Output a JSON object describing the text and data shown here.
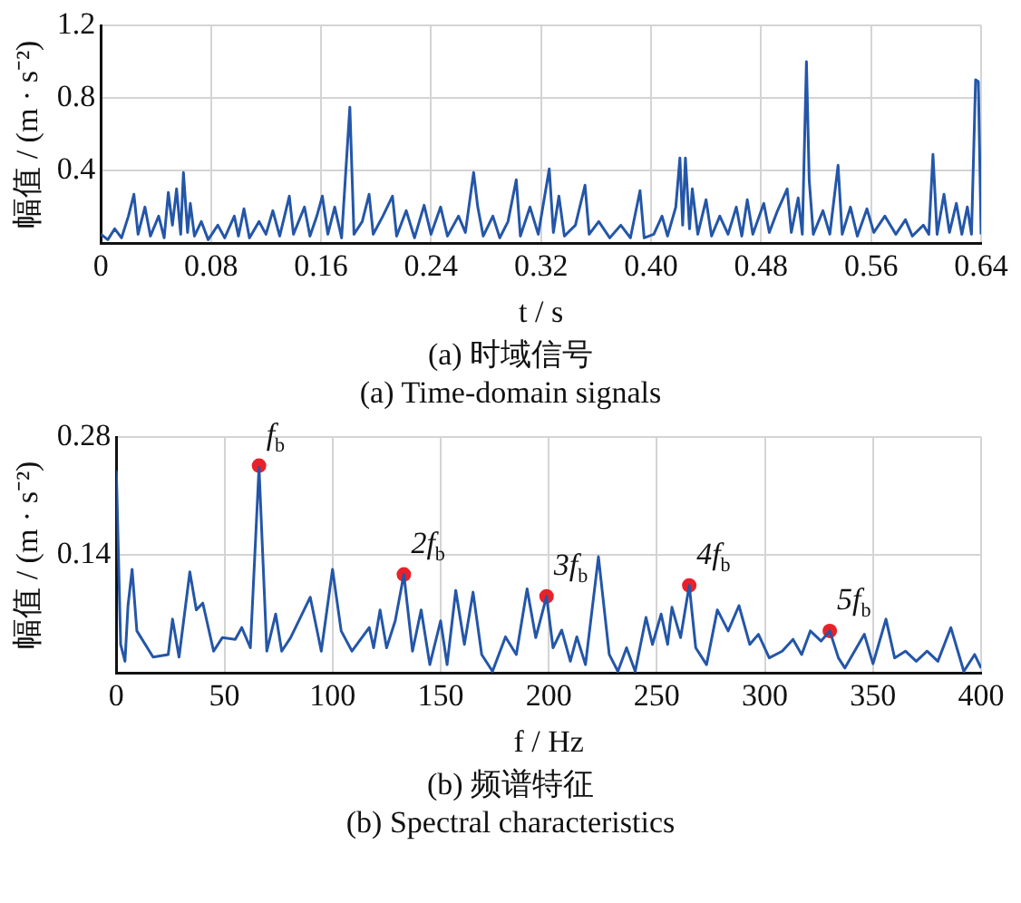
{
  "chart_data": [
    {
      "type": "line",
      "title": "(a)  时域信号",
      "subtitle": "(a)  Time-domain signals",
      "xlabel": "t / s",
      "ylabel": "幅值 / (m · s⁻²)",
      "xlim": [
        0,
        0.64
      ],
      "ylim": [
        0,
        1.2
      ],
      "xticks": [
        0,
        0.08,
        0.16,
        0.24,
        0.32,
        {
          "value": 0.4,
          "label": "0.40"
        },
        0.48,
        0.56,
        0.64
      ],
      "yticks": [
        0.4,
        0.8,
        1.2
      ],
      "grid": true,
      "legend": false,
      "marker": "none",
      "line_style": "solid",
      "series": [
        {
          "color": "#2456a8",
          "x": [
            0,
            0.005,
            0.01,
            0.015,
            0.02,
            0.024,
            0.027,
            0.032,
            0.036,
            0.042,
            0.046,
            0.049,
            0.052,
            0.055,
            0.058,
            0.06,
            0.063,
            0.065,
            0.068,
            0.073,
            0.078,
            0.085,
            0.09,
            0.097,
            0.1,
            0.104,
            0.108,
            0.115,
            0.12,
            0.125,
            0.13,
            0.137,
            0.14,
            0.148,
            0.152,
            0.157,
            0.161,
            0.165,
            0.17,
            0.175,
            0.181,
            0.184,
            0.19,
            0.195,
            0.198,
            0.205,
            0.212,
            0.215,
            0.222,
            0.228,
            0.235,
            0.24,
            0.247,
            0.252,
            0.26,
            0.265,
            0.271,
            0.274,
            0.278,
            0.285,
            0.29,
            0.296,
            0.302,
            0.305,
            0.312,
            0.318,
            0.326,
            0.329,
            0.333,
            0.337,
            0.345,
            0.352,
            0.355,
            0.362,
            0.37,
            0.378,
            0.385,
            0.392,
            0.395,
            0.402,
            0.408,
            0.412,
            0.418,
            0.421,
            0.423,
            0.425,
            0.428,
            0.43,
            0.434,
            0.44,
            0.444,
            0.45,
            0.456,
            0.462,
            0.466,
            0.47,
            0.474,
            0.482,
            0.486,
            0.492,
            0.499,
            0.502,
            0.507,
            0.51,
            0.513,
            0.515,
            0.518,
            0.525,
            0.53,
            0.536,
            0.539,
            0.545,
            0.55,
            0.557,
            0.562,
            0.57,
            0.578,
            0.585,
            0.59,
            0.598,
            0.602,
            0.605,
            0.608,
            0.613,
            0.617,
            0.622,
            0.626,
            0.63,
            0.633,
            0.636,
            0.638,
            0.64
          ],
          "values": [
            0.05,
            0.02,
            0.08,
            0.03,
            0.15,
            0.27,
            0.05,
            0.2,
            0.04,
            0.15,
            0.03,
            0.28,
            0.1,
            0.3,
            0.05,
            0.39,
            0.06,
            0.22,
            0.04,
            0.12,
            0.02,
            0.1,
            0.03,
            0.15,
            0.04,
            0.19,
            0.03,
            0.12,
            0.05,
            0.18,
            0.04,
            0.26,
            0.05,
            0.2,
            0.04,
            0.15,
            0.26,
            0.05,
            0.2,
            0.03,
            0.75,
            0.05,
            0.12,
            0.27,
            0.05,
            0.15,
            0.26,
            0.04,
            0.18,
            0.03,
            0.21,
            0.05,
            0.2,
            0.04,
            0.15,
            0.06,
            0.39,
            0.2,
            0.04,
            0.15,
            0.03,
            0.12,
            0.35,
            0.04,
            0.2,
            0.05,
            0.41,
            0.06,
            0.26,
            0.04,
            0.1,
            0.32,
            0.05,
            0.12,
            0.03,
            0.1,
            0.03,
            0.29,
            0.03,
            0.05,
            0.15,
            0.04,
            0.2,
            0.47,
            0.1,
            0.47,
            0.08,
            0.3,
            0.05,
            0.24,
            0.04,
            0.15,
            0.05,
            0.2,
            0.04,
            0.24,
            0.05,
            0.22,
            0.06,
            0.18,
            0.3,
            0.06,
            0.25,
            0.05,
            1.0,
            0.35,
            0.05,
            0.18,
            0.05,
            0.43,
            0.05,
            0.2,
            0.04,
            0.19,
            0.06,
            0.15,
            0.05,
            0.13,
            0.04,
            0.1,
            0.05,
            0.49,
            0.05,
            0.27,
            0.06,
            0.22,
            0.05,
            0.2,
            0.05,
            0.9,
            0.89,
            0.05
          ]
        }
      ]
    },
    {
      "type": "line",
      "title": "(b)  频谱特征",
      "subtitle": "(b)  Spectral characteristics",
      "xlabel": "f / Hz",
      "ylabel": "幅值 / (m · s⁻²)",
      "xlim": [
        0,
        400
      ],
      "ylim": [
        0,
        0.28
      ],
      "xticks": [
        0,
        50,
        100,
        150,
        200,
        250,
        300,
        350,
        400
      ],
      "yticks": [
        0.14,
        0.28
      ],
      "grid": true,
      "legend": false,
      "line_style": "solid",
      "annotations": [
        {
          "text": "f$_{b}$",
          "x": 66,
          "y": 0.246
        },
        {
          "text": "2f$_{b}$",
          "x": 133,
          "y": 0.117
        },
        {
          "text": "3f$_{b}$",
          "x": 199,
          "y": 0.091
        },
        {
          "text": "4f$_{b}$",
          "x": 265,
          "y": 0.104
        },
        {
          "text": "5f$_{b}$",
          "x": 330,
          "y": 0.05
        }
      ],
      "series": [
        {
          "color": "#2456a8",
          "marker": "none",
          "x": [
            0,
            2,
            4,
            5.4,
            7.3,
            9.5,
            17,
            24,
            26,
            29,
            34,
            37,
            40,
            45,
            49,
            55,
            58,
            62,
            66,
            69.6,
            73.7,
            76.5,
            80.6,
            89.7,
            94.8,
            100,
            104,
            109,
            117,
            119,
            122,
            125,
            129,
            133,
            137,
            141,
            145,
            150,
            153,
            157,
            161,
            165,
            169,
            174,
            180,
            185,
            190,
            194,
            199,
            202,
            206,
            210,
            213,
            217,
            223,
            228,
            232,
            236,
            240,
            245,
            248,
            252,
            255,
            257,
            261,
            265,
            268,
            273,
            278,
            283,
            288,
            293,
            297,
            302,
            308,
            313,
            317,
            321,
            326,
            330,
            334,
            337,
            346,
            350,
            356,
            360,
            365,
            370,
            375,
            380,
            386,
            392,
            397,
            400
          ],
          "values": [
            0.24,
            0.034,
            0.014,
            0.08,
            0.123,
            0.05,
            0.019,
            0.022,
            0.064,
            0.019,
            0.12,
            0.075,
            0.083,
            0.026,
            0.042,
            0.04,
            0.054,
            0.03,
            0.244,
            0.026,
            0.07,
            0.026,
            0.042,
            0.09,
            0.026,
            0.123,
            0.05,
            0.026,
            0.054,
            0.03,
            0.075,
            0.03,
            0.062,
            0.117,
            0.026,
            0.075,
            0.01,
            0.062,
            0.01,
            0.098,
            0.034,
            0.096,
            0.022,
            0.002,
            0.043,
            0.022,
            0.1,
            0.042,
            0.091,
            0.03,
            0.051,
            0.014,
            0.043,
            0.01,
            0.138,
            0.022,
            0.002,
            0.03,
            0.002,
            0.066,
            0.034,
            0.07,
            0.034,
            0.078,
            0.042,
            0.104,
            0.03,
            0.01,
            0.075,
            0.05,
            0.08,
            0.034,
            0.046,
            0.018,
            0.026,
            0.04,
            0.022,
            0.05,
            0.038,
            0.05,
            0.018,
            0.006,
            0.046,
            0.011,
            0.064,
            0.018,
            0.026,
            0.014,
            0.026,
            0.014,
            0.054,
            0.002,
            0.022,
            0.006
          ]
        },
        {
          "type": "scatter",
          "color": "#e8222a",
          "marker": "circle",
          "x": [
            66,
            133,
            199,
            265,
            330
          ],
          "values": [
            0.246,
            0.117,
            0.091,
            0.104,
            0.05
          ]
        }
      ]
    }
  ]
}
